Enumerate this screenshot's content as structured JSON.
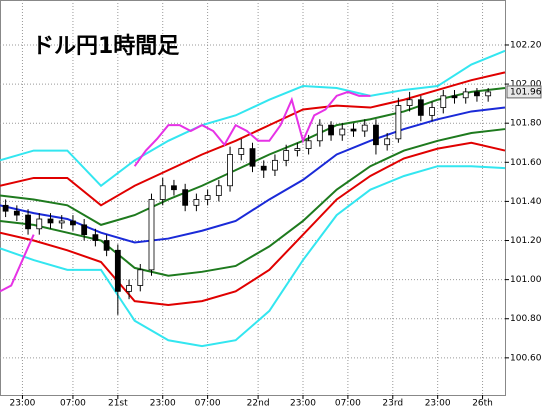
{
  "chart_data": {
    "type": "candlestick",
    "title": "ドル円1時間足",
    "xlim": [
      0,
      90
    ],
    "ylim": [
      100.41,
      102.43
    ],
    "grid": true,
    "xticks": [
      {
        "value": 4,
        "label": "23:00"
      },
      {
        "value": 13,
        "label": "07:00"
      },
      {
        "value": 21,
        "label": "21st"
      },
      {
        "value": 29,
        "label": "23:00"
      },
      {
        "value": 37,
        "label": "07:00"
      },
      {
        "value": 46,
        "label": "22nd"
      },
      {
        "value": 54,
        "label": "23:00"
      },
      {
        "value": 62,
        "label": "07:00"
      },
      {
        "value": 70,
        "label": "23rd"
      },
      {
        "value": 78,
        "label": "23:00"
      },
      {
        "value": 86,
        "label": "26th"
      }
    ],
    "yticks": [
      {
        "value": 100.6,
        "label": "100.60"
      },
      {
        "value": 100.8,
        "label": "100.80"
      },
      {
        "value": 101.0,
        "label": "101.00"
      },
      {
        "value": 101.2,
        "label": "101.20"
      },
      {
        "value": 101.4,
        "label": "101.40"
      },
      {
        "value": 101.6,
        "label": "101.60"
      },
      {
        "value": 101.8,
        "label": "101.80"
      },
      {
        "value": 102.0,
        "label": "102.00"
      },
      {
        "value": 102.2,
        "label": "102.20"
      }
    ],
    "current_price": 101.96,
    "up_color": "#ffffff",
    "down_color": "#000000",
    "x": [
      1,
      3,
      5,
      7,
      9,
      11,
      13,
      15,
      17,
      19,
      21,
      23,
      25,
      27,
      29,
      31,
      33,
      35,
      37,
      39,
      41,
      43,
      45,
      47,
      49,
      51,
      53,
      55,
      57,
      59,
      61,
      63,
      65,
      67,
      69,
      71,
      73,
      75,
      77,
      79,
      81,
      83,
      85,
      87
    ],
    "open": [
      101.38,
      101.35,
      101.33,
      101.26,
      101.31,
      101.29,
      101.3,
      101.28,
      101.23,
      101.2,
      101.15,
      100.94,
      100.97,
      101.05,
      101.41,
      101.48,
      101.46,
      101.38,
      101.41,
      101.43,
      101.48,
      101.64,
      101.67,
      101.58,
      101.56,
      101.61,
      101.66,
      101.67,
      101.71,
      101.79,
      101.74,
      101.77,
      101.76,
      101.79,
      101.69,
      101.72,
      101.89,
      101.92,
      101.84,
      101.88,
      101.94,
      101.93,
      101.96,
      101.94
    ],
    "high": [
      101.41,
      101.38,
      101.36,
      101.34,
      101.34,
      101.33,
      101.33,
      101.31,
      101.26,
      101.23,
      101.18,
      101.0,
      101.08,
      101.44,
      101.52,
      101.51,
      101.49,
      101.44,
      101.46,
      101.51,
      101.68,
      101.72,
      101.7,
      101.61,
      101.64,
      101.69,
      101.7,
      101.74,
      101.82,
      101.81,
      101.8,
      101.8,
      101.82,
      101.82,
      101.75,
      101.93,
      101.96,
      101.94,
      101.91,
      101.97,
      101.97,
      101.98,
      101.98,
      101.98
    ],
    "low": [
      101.32,
      101.3,
      101.23,
      101.23,
      101.26,
      101.26,
      101.25,
      101.2,
      101.17,
      101.12,
      100.82,
      100.9,
      100.94,
      101.02,
      101.38,
      101.43,
      101.35,
      101.35,
      101.38,
      101.4,
      101.45,
      101.61,
      101.55,
      101.52,
      101.53,
      101.58,
      101.63,
      101.64,
      101.68,
      101.71,
      101.71,
      101.73,
      101.73,
      101.64,
      101.66,
      101.7,
      101.86,
      101.81,
      101.81,
      101.85,
      101.9,
      101.9,
      101.91,
      101.91
    ],
    "close": [
      101.35,
      101.33,
      101.26,
      101.31,
      101.29,
      101.3,
      101.28,
      101.23,
      101.2,
      101.15,
      100.94,
      100.97,
      101.05,
      101.41,
      101.48,
      101.46,
      101.38,
      101.41,
      101.43,
      101.48,
      101.64,
      101.67,
      101.58,
      101.56,
      101.61,
      101.66,
      101.67,
      101.71,
      101.79,
      101.74,
      101.77,
      101.76,
      101.79,
      101.69,
      101.72,
      101.89,
      101.92,
      101.84,
      101.88,
      101.94,
      101.93,
      101.96,
      101.94,
      101.96
    ],
    "lines": [
      {
        "color": "#33e6f0",
        "x": [
          0,
          6,
          12,
          18,
          24,
          30,
          36,
          42,
          48,
          54,
          60,
          66,
          72,
          78,
          84,
          90
        ],
        "values": [
          101.61,
          101.66,
          101.66,
          101.48,
          101.61,
          101.71,
          101.79,
          101.84,
          101.92,
          101.99,
          101.98,
          101.94,
          101.97,
          101.99,
          102.1,
          102.17
        ]
      },
      {
        "color": "#e00000",
        "x": [
          0,
          6,
          12,
          18,
          24,
          30,
          36,
          42,
          48,
          54,
          60,
          66,
          72,
          78,
          84,
          90
        ],
        "values": [
          101.48,
          101.52,
          101.52,
          101.38,
          101.48,
          101.56,
          101.64,
          101.71,
          101.79,
          101.87,
          101.89,
          101.88,
          101.92,
          101.97,
          102.02,
          102.06
        ]
      },
      {
        "color": "#1e7a1e",
        "x": [
          0,
          6,
          12,
          18,
          24,
          30,
          36,
          42,
          48,
          54,
          60,
          66,
          72,
          78,
          84,
          90
        ],
        "values": [
          101.43,
          101.41,
          101.38,
          101.28,
          101.33,
          101.41,
          101.48,
          101.56,
          101.64,
          101.71,
          101.79,
          101.82,
          101.86,
          101.92,
          101.96,
          101.98
        ]
      },
      {
        "color": "#1a2ad8",
        "x": [
          0,
          6,
          12,
          18,
          24,
          30,
          36,
          42,
          48,
          54,
          60,
          66,
          72,
          78,
          84,
          90
        ],
        "values": [
          101.38,
          101.34,
          101.31,
          101.24,
          101.19,
          101.21,
          101.25,
          101.3,
          101.41,
          101.51,
          101.64,
          101.71,
          101.77,
          101.82,
          101.86,
          101.88
        ]
      },
      {
        "color": "#1e7a1e",
        "x": [
          0,
          6,
          12,
          18,
          24,
          30,
          36,
          42,
          48,
          54,
          60,
          66,
          72,
          78,
          84,
          90
        ],
        "values": [
          101.3,
          101.28,
          101.24,
          101.2,
          101.06,
          101.02,
          101.04,
          101.07,
          101.17,
          101.3,
          101.46,
          101.58,
          101.66,
          101.71,
          101.75,
          101.77
        ]
      },
      {
        "color": "#e00000",
        "x": [
          0,
          6,
          12,
          18,
          24,
          30,
          36,
          42,
          48,
          54,
          60,
          66,
          72,
          78,
          84,
          90
        ],
        "values": [
          101.24,
          101.2,
          101.15,
          101.09,
          100.89,
          100.87,
          100.89,
          100.94,
          101.05,
          101.23,
          101.41,
          101.53,
          101.62,
          101.67,
          101.7,
          101.66
        ]
      },
      {
        "color": "#33e6f0",
        "x": [
          0,
          6,
          12,
          18,
          24,
          30,
          36,
          42,
          48,
          54,
          60,
          66,
          72,
          78,
          84,
          90
        ],
        "values": [
          101.16,
          101.1,
          101.05,
          101.05,
          100.79,
          100.69,
          100.66,
          100.69,
          100.84,
          101.1,
          101.33,
          101.46,
          101.53,
          101.58,
          101.58,
          101.57
        ]
      },
      {
        "color": "#e632e6",
        "x": [
          0,
          2,
          4,
          6,
          15,
          24,
          26,
          28,
          30,
          32,
          34,
          36,
          38,
          40,
          42,
          44,
          46,
          48,
          50,
          52,
          54,
          56,
          58,
          60,
          62,
          64,
          66
        ],
        "values": [
          100.94,
          100.97,
          101.1,
          101.23,
          null,
          101.58,
          101.66,
          101.72,
          101.79,
          101.79,
          101.76,
          101.79,
          101.76,
          101.69,
          101.79,
          101.76,
          101.71,
          101.71,
          101.79,
          101.92,
          101.71,
          101.84,
          101.87,
          101.94,
          101.96,
          101.94,
          101.94
        ]
      }
    ]
  }
}
